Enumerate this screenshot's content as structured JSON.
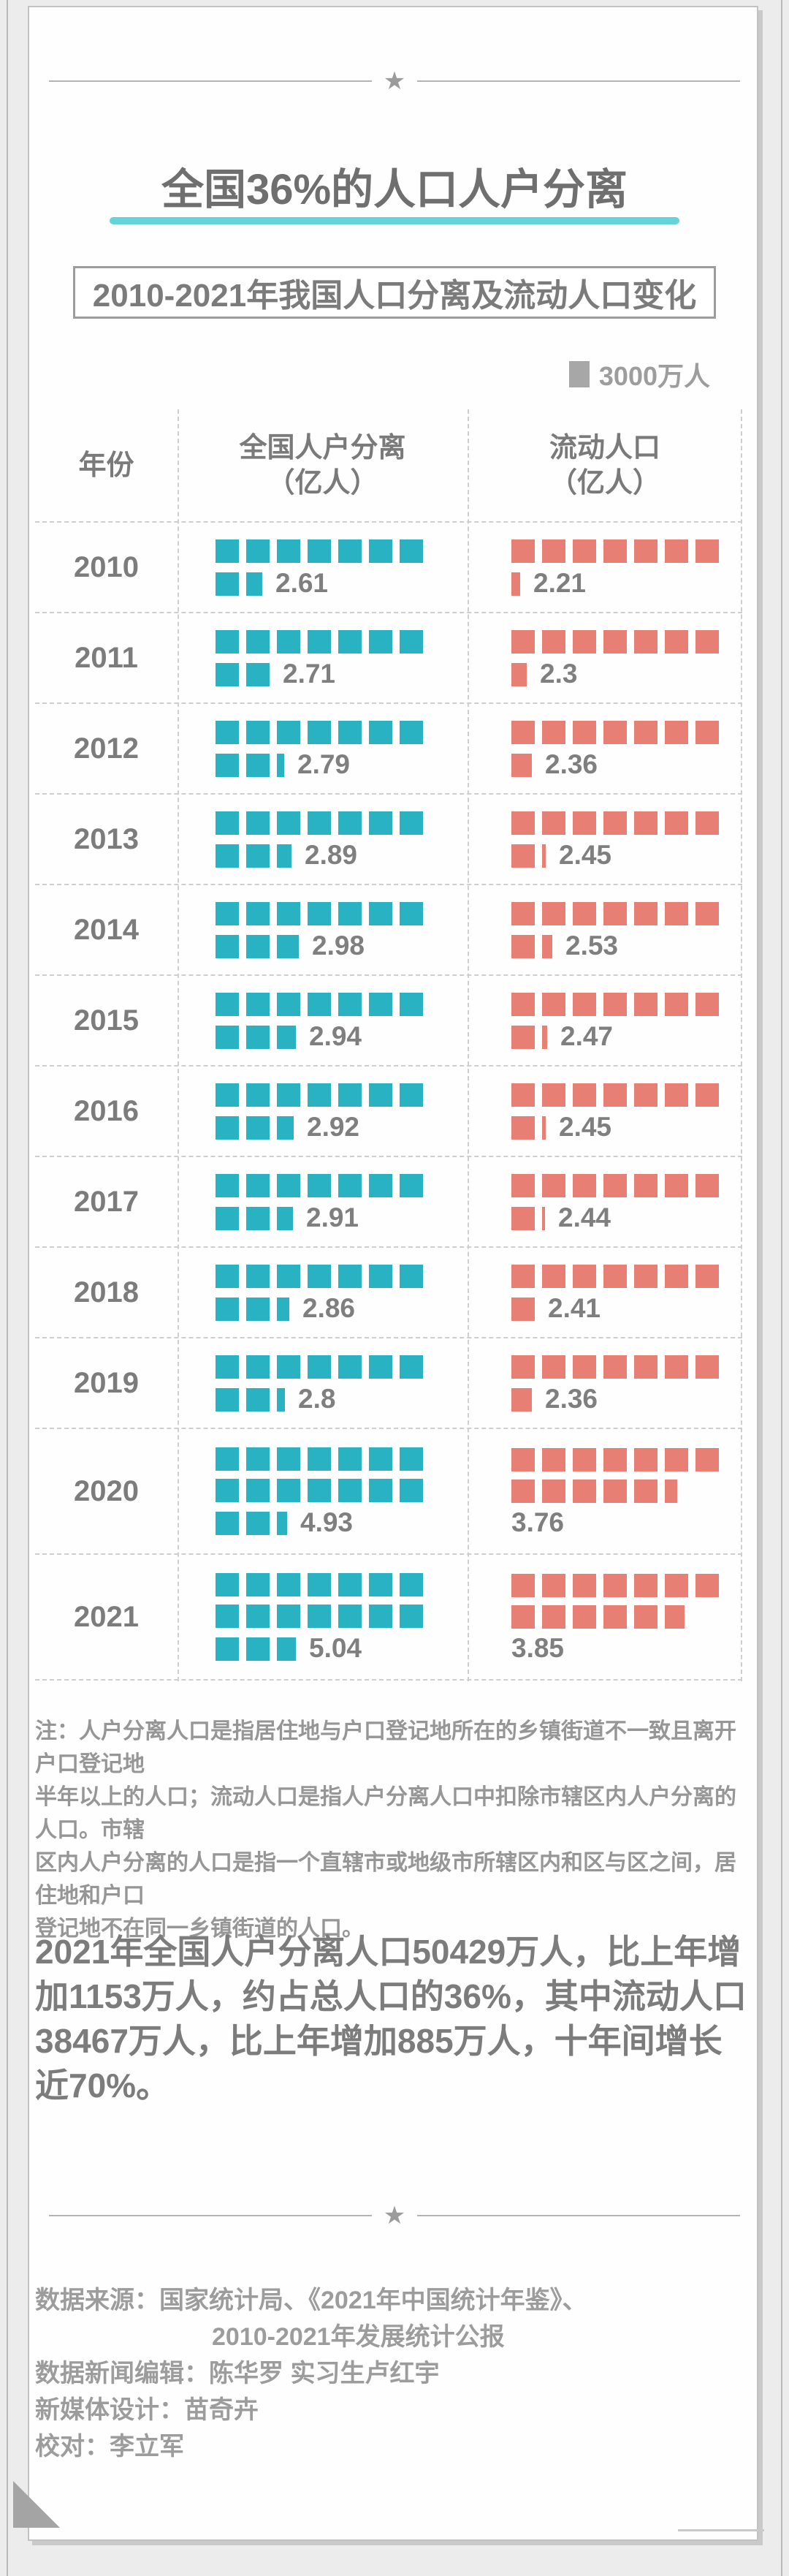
{
  "title": "全国36%的人口人户分离",
  "subtitle": "2010-2021年我国人口分离及流动人口变化",
  "legend": {
    "label": "3000万人"
  },
  "colors": {
    "separated": "#29b2c2",
    "floating": "#e87f75",
    "legend_square": "#a7a7a7",
    "underline": "#66d2da"
  },
  "table": {
    "headers": {
      "year": "年份",
      "col1_line1": "全国人户分离",
      "col1_line2": "（亿人）",
      "col2_line1": "流动人口",
      "col2_line2": "（亿人）"
    },
    "unit_value": 0.3,
    "rows": [
      {
        "year": "2010",
        "separated": {
          "value": 2.61,
          "label": "2.61"
        },
        "floating": {
          "value": 2.21,
          "label": "2.21"
        }
      },
      {
        "year": "2011",
        "separated": {
          "value": 2.71,
          "label": "2.71"
        },
        "floating": {
          "value": 2.3,
          "label": "2.3"
        }
      },
      {
        "year": "2012",
        "separated": {
          "value": 2.79,
          "label": "2.79"
        },
        "floating": {
          "value": 2.36,
          "label": "2.36"
        }
      },
      {
        "year": "2013",
        "separated": {
          "value": 2.89,
          "label": "2.89"
        },
        "floating": {
          "value": 2.45,
          "label": "2.45"
        }
      },
      {
        "year": "2014",
        "separated": {
          "value": 2.98,
          "label": "2.98"
        },
        "floating": {
          "value": 2.53,
          "label": "2.53"
        }
      },
      {
        "year": "2015",
        "separated": {
          "value": 2.94,
          "label": "2.94"
        },
        "floating": {
          "value": 2.47,
          "label": "2.47"
        }
      },
      {
        "year": "2016",
        "separated": {
          "value": 2.92,
          "label": "2.92"
        },
        "floating": {
          "value": 2.45,
          "label": "2.45"
        }
      },
      {
        "year": "2017",
        "separated": {
          "value": 2.91,
          "label": "2.91"
        },
        "floating": {
          "value": 2.44,
          "label": "2.44"
        }
      },
      {
        "year": "2018",
        "separated": {
          "value": 2.86,
          "label": "2.86"
        },
        "floating": {
          "value": 2.41,
          "label": "2.41"
        }
      },
      {
        "year": "2019",
        "separated": {
          "value": 2.8,
          "label": "2.8"
        },
        "floating": {
          "value": 2.36,
          "label": "2.36"
        }
      },
      {
        "year": "2020",
        "separated": {
          "value": 4.93,
          "label": "4.93"
        },
        "floating": {
          "value": 3.76,
          "label": "3.76",
          "label_below": true
        }
      },
      {
        "year": "2021",
        "separated": {
          "value": 5.04,
          "label": "5.04"
        },
        "floating": {
          "value": 3.85,
          "label": "3.85",
          "label_below": true
        }
      }
    ]
  },
  "note": {
    "lines": [
      "注：人户分离人口是指居住地与户口登记地所在的乡镇街道不一致且离开户口登记地",
      "半年以上的人口；流动人口是指人户分离人口中扣除市辖区内人户分离的人口。市辖",
      "区内人户分离的人口是指一个直辖市或地级市所辖区内和区与区之间，居住地和户口",
      "登记地不在同一乡镇街道的人口。"
    ]
  },
  "summary": {
    "lines": [
      "2021年全国人户分离人口50429万人，比上年增",
      "加1153万人，约占总人口的36%，其中流动人口",
      "38467万人，比上年增加885万人，十年间增长",
      "近70%。"
    ]
  },
  "footer": {
    "lines": [
      "数据来源：国家统计局、《2021年中国统计年鉴》、",
      "2010-2021年发展统计公报",
      "数据新闻编辑：陈华罗 实习生卢红宇",
      "新媒体设计：苗奇卉",
      "校对：李立军"
    ]
  },
  "chart_data": {
    "type": "bar",
    "subtype": "pictogram-unit-chart",
    "title": "2010-2021年我国人口分离及流动人口变化",
    "unit_square": "1 square = 3000万人 (0.3亿人)",
    "categories": [
      "2010",
      "2011",
      "2012",
      "2013",
      "2014",
      "2015",
      "2016",
      "2017",
      "2018",
      "2019",
      "2020",
      "2021"
    ],
    "series": [
      {
        "name": "全国人户分离（亿人）",
        "color": "#29b2c2",
        "values": [
          2.61,
          2.71,
          2.79,
          2.89,
          2.98,
          2.94,
          2.92,
          2.91,
          2.86,
          2.8,
          4.93,
          5.04
        ]
      },
      {
        "name": "流动人口（亿人）",
        "color": "#e87f75",
        "values": [
          2.21,
          2.3,
          2.36,
          2.45,
          2.53,
          2.47,
          2.45,
          2.44,
          2.41,
          2.36,
          3.76,
          3.85
        ]
      }
    ],
    "legend_position": "top-right",
    "grid": "dashed row/column separators"
  }
}
